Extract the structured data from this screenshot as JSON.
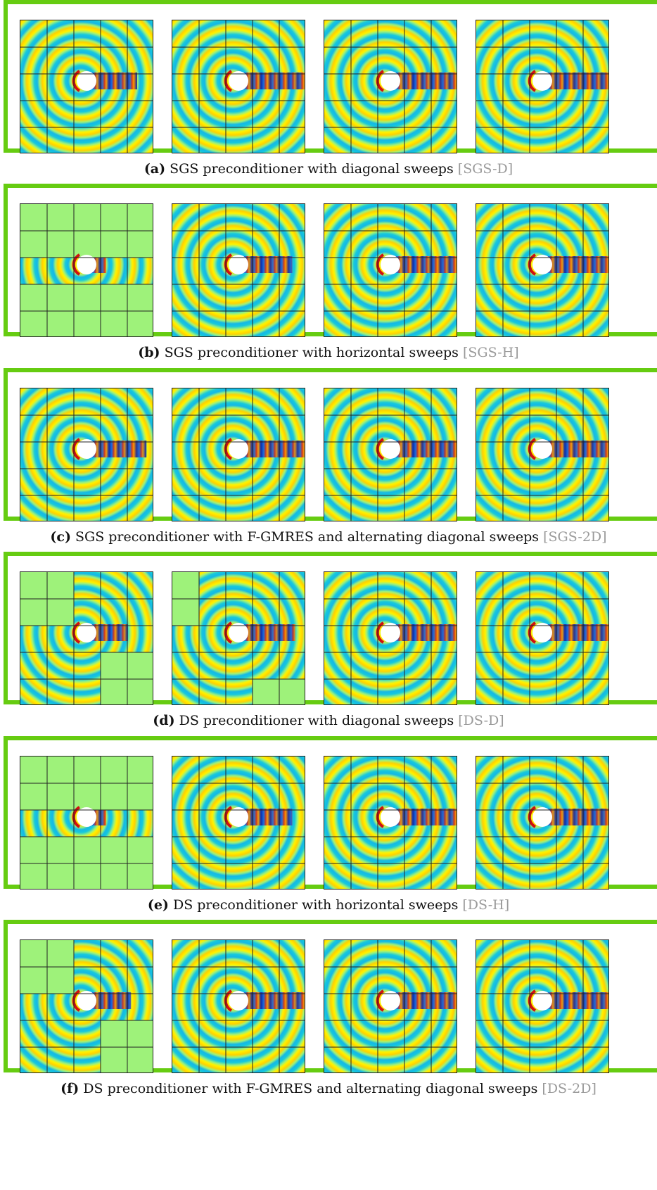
{
  "figure": {
    "panels": [
      {
        "letter": "(a)",
        "caption": "SGS preconditioner with diagonal sweeps",
        "tag": "[SGS-D]",
        "tile_states": [
          [
            [
              1,
              1,
              1,
              1,
              1
            ],
            [
              1,
              1,
              1,
              1,
              1
            ],
            [
              1,
              1,
              1,
              1,
              1
            ],
            [
              1,
              1,
              1,
              1,
              1
            ],
            [
              1,
              1,
              1,
              1,
              1
            ]
          ],
          [
            [
              1,
              1,
              1,
              1,
              1
            ],
            [
              1,
              1,
              1,
              1,
              1
            ],
            [
              1,
              1,
              1,
              1,
              1
            ],
            [
              1,
              1,
              1,
              1,
              1
            ],
            [
              1,
              1,
              1,
              1,
              1
            ]
          ],
          [
            [
              1,
              1,
              1,
              1,
              1
            ],
            [
              1,
              1,
              1,
              1,
              1
            ],
            [
              1,
              1,
              1,
              1,
              1
            ],
            [
              1,
              1,
              1,
              1,
              1
            ],
            [
              1,
              1,
              1,
              1,
              1
            ]
          ],
          [
            [
              1,
              1,
              1,
              1,
              1
            ],
            [
              1,
              1,
              1,
              1,
              1
            ],
            [
              1,
              1,
              1,
              1,
              1
            ],
            [
              1,
              1,
              1,
              1,
              1
            ],
            [
              1,
              1,
              1,
              1,
              1
            ]
          ]
        ],
        "wave_extent": [
          0.75,
          1.0,
          1.0,
          1.0
        ]
      },
      {
        "letter": "(b)",
        "caption": "SGS preconditioner with horizontal sweeps",
        "tag": "[SGS-H]",
        "tile_states": [
          [
            [
              0,
              0,
              0,
              0,
              0
            ],
            [
              0,
              0,
              0,
              0,
              0
            ],
            [
              1,
              1,
              1,
              1,
              1
            ],
            [
              0,
              0,
              0,
              0,
              0
            ],
            [
              0,
              0,
              0,
              0,
              0
            ]
          ],
          [
            [
              1,
              1,
              1,
              1,
              1
            ],
            [
              1,
              1,
              1,
              1,
              1
            ],
            [
              1,
              1,
              1,
              1,
              1
            ],
            [
              1,
              1,
              1,
              1,
              1
            ],
            [
              1,
              1,
              1,
              1,
              1
            ]
          ],
          [
            [
              1,
              1,
              1,
              1,
              1
            ],
            [
              1,
              1,
              1,
              1,
              1
            ],
            [
              1,
              1,
              1,
              1,
              1
            ],
            [
              1,
              1,
              1,
              1,
              1
            ],
            [
              1,
              1,
              1,
              1,
              1
            ]
          ],
          [
            [
              1,
              1,
              1,
              1,
              1
            ],
            [
              1,
              1,
              1,
              1,
              1
            ],
            [
              1,
              1,
              1,
              1,
              1
            ],
            [
              1,
              1,
              1,
              1,
              1
            ],
            [
              1,
              1,
              1,
              1,
              1
            ]
          ]
        ],
        "wave_extent": [
          0.25,
          0.8,
          1.0,
          1.0
        ]
      },
      {
        "letter": "(c)",
        "caption": "SGS preconditioner with F-GMRES and alternating diagonal sweeps",
        "tag": "[SGS-2D]",
        "tile_states": [
          [
            [
              1,
              1,
              1,
              1,
              1
            ],
            [
              1,
              1,
              1,
              1,
              1
            ],
            [
              1,
              1,
              1,
              1,
              1
            ],
            [
              1,
              1,
              1,
              1,
              1
            ],
            [
              1,
              1,
              1,
              1,
              1
            ]
          ],
          [
            [
              1,
              1,
              1,
              1,
              1
            ],
            [
              1,
              1,
              1,
              1,
              1
            ],
            [
              1,
              1,
              1,
              1,
              1
            ],
            [
              1,
              1,
              1,
              1,
              1
            ],
            [
              1,
              1,
              1,
              1,
              1
            ]
          ],
          [
            [
              1,
              1,
              1,
              1,
              1
            ],
            [
              1,
              1,
              1,
              1,
              1
            ],
            [
              1,
              1,
              1,
              1,
              1
            ],
            [
              1,
              1,
              1,
              1,
              1
            ],
            [
              1,
              1,
              1,
              1,
              1
            ]
          ],
          [
            [
              1,
              1,
              1,
              1,
              1
            ],
            [
              1,
              1,
              1,
              1,
              1
            ],
            [
              1,
              1,
              1,
              1,
              1
            ],
            [
              1,
              1,
              1,
              1,
              1
            ],
            [
              1,
              1,
              1,
              1,
              1
            ]
          ]
        ],
        "wave_extent": [
          0.9,
          1.0,
          1.0,
          1.0
        ]
      },
      {
        "letter": "(d)",
        "caption": "DS preconditioner with diagonal sweeps",
        "tag": "[DS-D]",
        "tile_states": [
          [
            [
              0,
              0,
              1,
              1,
              1
            ],
            [
              0,
              0,
              1,
              1,
              1
            ],
            [
              1,
              1,
              1,
              1,
              1
            ],
            [
              1,
              1,
              1,
              0,
              0
            ],
            [
              1,
              1,
              1,
              0,
              0
            ]
          ],
          [
            [
              0,
              1,
              1,
              1,
              1
            ],
            [
              0,
              1,
              1,
              1,
              1
            ],
            [
              1,
              1,
              1,
              1,
              1
            ],
            [
              1,
              1,
              1,
              1,
              1
            ],
            [
              1,
              1,
              1,
              0,
              0
            ]
          ],
          [
            [
              1,
              1,
              1,
              1,
              1
            ],
            [
              1,
              1,
              1,
              1,
              1
            ],
            [
              1,
              1,
              1,
              1,
              1
            ],
            [
              1,
              1,
              1,
              1,
              1
            ],
            [
              1,
              1,
              1,
              1,
              1
            ]
          ],
          [
            [
              1,
              1,
              1,
              1,
              1
            ],
            [
              1,
              1,
              1,
              1,
              1
            ],
            [
              1,
              1,
              1,
              1,
              1
            ],
            [
              1,
              1,
              1,
              1,
              1
            ],
            [
              1,
              1,
              1,
              1,
              1
            ]
          ]
        ],
        "wave_extent": [
          0.6,
          0.85,
          1.0,
          1.0
        ]
      },
      {
        "letter": "(e)",
        "caption": "DS preconditioner with horizontal sweeps",
        "tag": "[DS-H]",
        "tile_states": [
          [
            [
              0,
              0,
              0,
              0,
              0
            ],
            [
              0,
              0,
              0,
              0,
              0
            ],
            [
              1,
              1,
              1,
              1,
              1
            ],
            [
              0,
              0,
              0,
              0,
              0
            ],
            [
              0,
              0,
              0,
              0,
              0
            ]
          ],
          [
            [
              1,
              1,
              1,
              1,
              1
            ],
            [
              1,
              1,
              1,
              1,
              1
            ],
            [
              1,
              1,
              1,
              1,
              1
            ],
            [
              1,
              1,
              1,
              1,
              1
            ],
            [
              1,
              1,
              1,
              1,
              1
            ]
          ],
          [
            [
              1,
              1,
              1,
              1,
              1
            ],
            [
              1,
              1,
              1,
              1,
              1
            ],
            [
              1,
              1,
              1,
              1,
              1
            ],
            [
              1,
              1,
              1,
              1,
              1
            ],
            [
              1,
              1,
              1,
              1,
              1
            ]
          ],
          [
            [
              1,
              1,
              1,
              1,
              1
            ],
            [
              1,
              1,
              1,
              1,
              1
            ],
            [
              1,
              1,
              1,
              1,
              1
            ],
            [
              1,
              1,
              1,
              1,
              1
            ],
            [
              1,
              1,
              1,
              1,
              1
            ]
          ]
        ],
        "wave_extent": [
          0.25,
          0.8,
          1.0,
          1.0
        ]
      },
      {
        "letter": "(f)",
        "caption": "DS preconditioner with F-GMRES and alternating diagonal sweeps",
        "tag": "[DS-2D]",
        "tile_states": [
          [
            [
              0,
              0,
              1,
              1,
              1
            ],
            [
              0,
              0,
              1,
              1,
              1
            ],
            [
              1,
              1,
              1,
              1,
              1
            ],
            [
              1,
              1,
              1,
              0,
              0
            ],
            [
              1,
              1,
              1,
              0,
              0
            ]
          ],
          [
            [
              1,
              1,
              1,
              1,
              1
            ],
            [
              1,
              1,
              1,
              1,
              1
            ],
            [
              1,
              1,
              1,
              1,
              1
            ],
            [
              1,
              1,
              1,
              1,
              1
            ],
            [
              1,
              1,
              1,
              1,
              1
            ]
          ],
          [
            [
              1,
              1,
              1,
              1,
              1
            ],
            [
              1,
              1,
              1,
              1,
              1
            ],
            [
              1,
              1,
              1,
              1,
              1
            ],
            [
              1,
              1,
              1,
              1,
              1
            ],
            [
              1,
              1,
              1,
              1,
              1
            ]
          ],
          [
            [
              1,
              1,
              1,
              1,
              1
            ],
            [
              1,
              1,
              1,
              1,
              1
            ],
            [
              1,
              1,
              1,
              1,
              1
            ],
            [
              1,
              1,
              1,
              1,
              1
            ],
            [
              1,
              1,
              1,
              1,
              1
            ]
          ]
        ],
        "wave_extent": [
          0.65,
          1.0,
          1.0,
          1.0
        ]
      }
    ],
    "colors": {
      "frame": "#66cc11",
      "inactive_block": "#9ef27a",
      "grid_line": "#222222",
      "tag_text": "#9a9a9a"
    }
  }
}
